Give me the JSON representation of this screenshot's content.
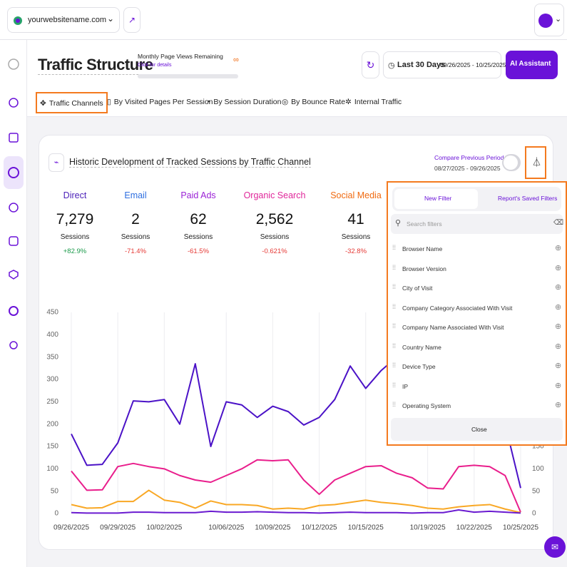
{
  "topbar": {
    "site": "yourwebsitename.com"
  },
  "header": {
    "title": "Traffic Structure",
    "quota_label": "Monthly Page Views Remaining",
    "quota_link": "Click for details",
    "quota_value": "∞",
    "range_label": "Last 30 Days",
    "range_dates": "09/26/2025 - 10/25/2025",
    "ai_button": "AI Assistant"
  },
  "tabs": [
    {
      "label": "Traffic Channels",
      "highlighted": true
    },
    {
      "label": "By Visited Pages Per Session"
    },
    {
      "label": "By Session Duration"
    },
    {
      "label": "By Bounce Rate"
    },
    {
      "label": "Internal Traffic"
    }
  ],
  "card": {
    "title": "Historic Development of Tracked Sessions by Traffic Channel",
    "compare_label": "Compare Previous Period",
    "compare_dates": "08/27/2025 - 09/26/2025"
  },
  "metrics": [
    {
      "name": "Direct",
      "color": "#4a1fb8",
      "value": "7,279",
      "unit": "Sessions",
      "change": "+82.9%",
      "change_color": "#1a9a4a"
    },
    {
      "name": "Email",
      "color": "#2f6fe0",
      "value": "2",
      "unit": "Sessions",
      "change": "-71.4%",
      "change_color": "#e53935"
    },
    {
      "name": "Paid Ads",
      "color": "#9b22d6",
      "value": "62",
      "unit": "Sessions",
      "change": "-61.5%",
      "change_color": "#e53935"
    },
    {
      "name": "Organic Search",
      "color": "#e0269a",
      "value": "2,562",
      "unit": "Sessions",
      "change": "-0.621%",
      "change_color": "#e53935"
    },
    {
      "name": "Social Media",
      "color": "#f06a10",
      "value": "41",
      "unit": "Sessions",
      "change": "-32.8%",
      "change_color": "#e53935"
    }
  ],
  "chart_data": {
    "type": "line",
    "categories": [
      "09/26/2025",
      null,
      null,
      "09/29/2025",
      null,
      null,
      "10/02/2025",
      null,
      null,
      null,
      "10/06/2025",
      null,
      null,
      "10/09/2025",
      null,
      null,
      "10/12/2025",
      null,
      null,
      "10/15/2025",
      null,
      null,
      null,
      "10/19/2025",
      null,
      null,
      "10/22/2025",
      null,
      null,
      "10/25/2025"
    ],
    "series": [
      {
        "color": "#4b12c7",
        "values": [
          178,
          108,
          110,
          158,
          252,
          250,
          255,
          200,
          335,
          150,
          250,
          243,
          215,
          240,
          228,
          198,
          215,
          255,
          330,
          280,
          320,
          350,
          380,
          360,
          320,
          300,
          270,
          240,
          200,
          57
        ]
      },
      {
        "color": "#e91e8c",
        "values": [
          95,
          52,
          53,
          105,
          112,
          105,
          100,
          85,
          75,
          70,
          85,
          100,
          120,
          118,
          120,
          75,
          43,
          75,
          90,
          105,
          107,
          90,
          80,
          57,
          55,
          105,
          108,
          105,
          85,
          3
        ]
      },
      {
        "color": "#f9a825",
        "values": [
          20,
          12,
          13,
          27,
          27,
          52,
          30,
          25,
          12,
          28,
          20,
          20,
          18,
          10,
          12,
          10,
          18,
          20,
          25,
          30,
          25,
          22,
          18,
          12,
          10,
          15,
          18,
          20,
          10,
          2
        ]
      },
      {
        "color": "#6a1bd0",
        "values": [
          2,
          1,
          1,
          1,
          3,
          3,
          2,
          2,
          2,
          5,
          3,
          3,
          4,
          3,
          2,
          2,
          1,
          2,
          3,
          2,
          2,
          2,
          1,
          2,
          2,
          8,
          3,
          5,
          3,
          1
        ]
      }
    ],
    "ylim": [
      0,
      450
    ],
    "yticks": [
      0,
      50,
      100,
      150,
      200,
      250,
      300,
      350,
      400,
      450
    ],
    "y2lim": [
      0,
      450
    ],
    "y2ticks": [
      0,
      50,
      100,
      150,
      200,
      250,
      300,
      350,
      400,
      450
    ],
    "grid": "x"
  },
  "filter_panel": {
    "tabs": [
      "New Filter",
      "Report's Saved Filters"
    ],
    "search_placeholder": "Search filters",
    "items": [
      "Browser Name",
      "Browser Version",
      "City of Visit",
      "Company Category Associated With Visit",
      "Company Name Associated With Visit",
      "Country Name",
      "Device Type",
      "IP",
      "Operating System"
    ],
    "close": "Close"
  }
}
